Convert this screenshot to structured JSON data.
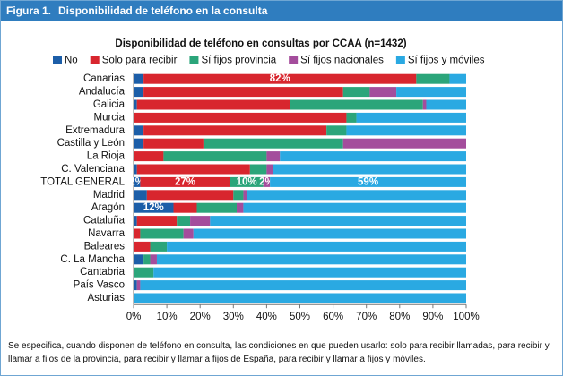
{
  "figure": {
    "label": "Figura 1.",
    "title": "Disponibilidad de teléfono en la consulta"
  },
  "chart_data": {
    "type": "bar",
    "orientation": "horizontal",
    "stacked": true,
    "title": "Disponibilidad de teléfono en consultas por CCAA (n=1432)",
    "categories": [
      "Canarias",
      "Andalucía",
      "Galicia",
      "Murcia",
      "Extremadura",
      "Castilla y León",
      "La Rioja",
      "C. Valenciana",
      "TOTAL GENERAL",
      "Madrid",
      "Aragón",
      "Cataluña",
      "Navarra",
      "Baleares",
      "C. La Mancha",
      "Cantabria",
      "País Vasco",
      "Asturias"
    ],
    "series": [
      {
        "name": "No",
        "color": "#1c5ea8",
        "values": [
          3,
          3,
          1,
          0,
          3,
          3,
          0,
          1,
          2,
          4,
          12,
          1,
          0,
          0,
          3,
          0,
          1,
          0
        ],
        "value_labels": [
          null,
          null,
          null,
          null,
          null,
          null,
          null,
          null,
          "2%",
          null,
          "12%",
          null,
          null,
          null,
          null,
          null,
          null,
          null
        ]
      },
      {
        "name": "Solo para recibir",
        "color": "#d8262e",
        "values": [
          82,
          60,
          46,
          64,
          55,
          18,
          9,
          34,
          27,
          26,
          7,
          12,
          2,
          5,
          0,
          0,
          0,
          0
        ],
        "value_labels": [
          "82%",
          null,
          null,
          null,
          null,
          null,
          null,
          null,
          "27%",
          null,
          null,
          null,
          null,
          null,
          null,
          null,
          null,
          null
        ]
      },
      {
        "name": "Sí fijos provincia",
        "color": "#2ba57a",
        "values": [
          10,
          8,
          40,
          3,
          6,
          42,
          31,
          5,
          10,
          3,
          12,
          4,
          13,
          5,
          2,
          6,
          0,
          0
        ],
        "value_labels": [
          null,
          null,
          null,
          null,
          null,
          null,
          null,
          null,
          "10%",
          null,
          null,
          null,
          null,
          null,
          null,
          null,
          null,
          null
        ]
      },
      {
        "name": "Sí fijos nacionales",
        "color": "#a44d9c",
        "values": [
          0,
          8,
          1,
          0,
          0,
          37,
          4,
          2,
          2,
          1,
          2,
          6,
          3,
          0,
          2,
          0,
          1,
          0
        ],
        "value_labels": [
          null,
          null,
          null,
          null,
          null,
          null,
          null,
          null,
          "2%",
          null,
          null,
          null,
          null,
          null,
          null,
          null,
          null,
          null
        ]
      },
      {
        "name": "Sí fijos y móviles",
        "color": "#2aa9e2",
        "values": [
          5,
          21,
          12,
          33,
          36,
          0,
          56,
          58,
          59,
          66,
          67,
          77,
          82,
          90,
          93,
          94,
          98,
          100
        ],
        "value_labels": [
          null,
          null,
          null,
          null,
          null,
          null,
          null,
          null,
          "59%",
          null,
          null,
          null,
          null,
          null,
          null,
          null,
          null,
          null
        ]
      }
    ],
    "xlim": [
      0,
      100
    ],
    "xticks": [
      {
        "value": 0,
        "label": "0%"
      },
      {
        "value": 10,
        "label": "10%"
      },
      {
        "value": 20,
        "label": "20%"
      },
      {
        "value": 30,
        "label": "30%"
      },
      {
        "value": 40,
        "label": "40%"
      },
      {
        "value": 50,
        "label": "50%"
      },
      {
        "value": 60,
        "label": "60%"
      },
      {
        "value": 70,
        "label": "70%"
      },
      {
        "value": 80,
        "label": "80%"
      },
      {
        "value": 90,
        "label": "90%"
      },
      {
        "value": 100,
        "label": "100%"
      }
    ],
    "legend": "top"
  },
  "note": "Se especifica, cuando disponen de teléfono en consulta, las condiciones en que pueden usarlo: solo para recibir llamadas, para recibir y llamar a fijos de la provincia, para recibir y llamar a fijos de España, para recibir y llamar a fijos y móviles."
}
